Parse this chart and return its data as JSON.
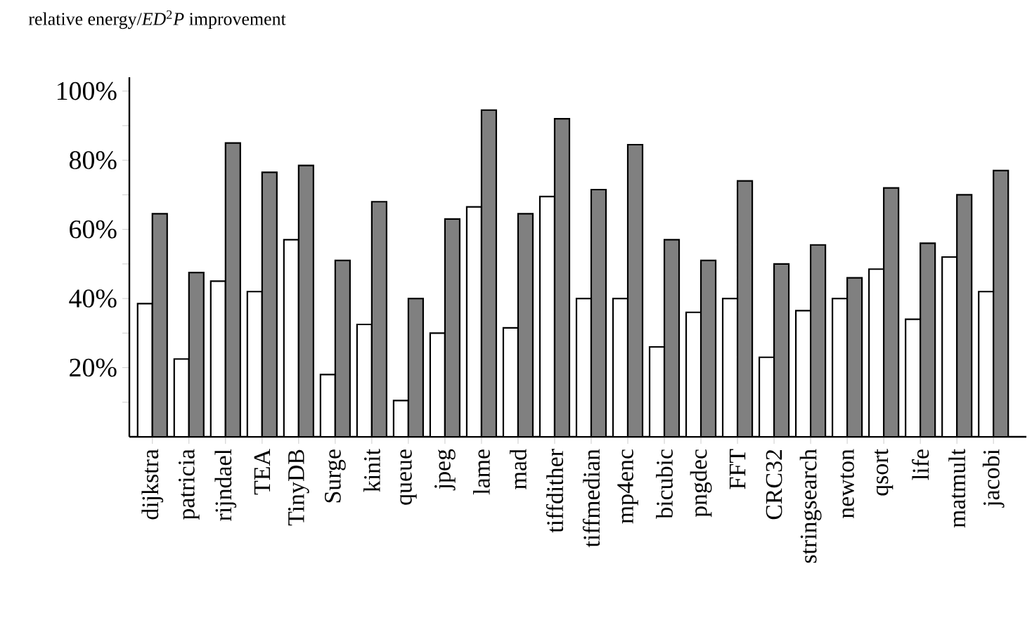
{
  "chart_data": {
    "type": "bar",
    "title": "relative energy/*ED*$^{2}$*P* improvement",
    "categories": [
      "dijkstra",
      "patricia",
      "rijndael",
      "TEA",
      "TinyDB",
      "Surge",
      "kinit",
      "queue",
      "jpeg",
      "lame",
      "mad",
      "tiffdither",
      "tiffmedian",
      "mp4enc",
      "bicubic",
      "pngdec",
      "FFT",
      "CRC32",
      "stringsearch",
      "newton",
      "qsort",
      "life",
      "matmult",
      "jacobi"
    ],
    "series": [
      {
        "color": "#ffffff",
        "values": [
          38.5,
          22.5,
          45,
          42,
          57,
          18,
          32.5,
          10.5,
          30,
          66.5,
          31.5,
          69.5,
          40,
          40,
          26,
          36,
          40,
          23,
          36.5,
          40,
          48.5,
          34,
          52,
          42
        ]
      },
      {
        "color": "#808080",
        "values": [
          64.5,
          47.5,
          85,
          76.5,
          78.5,
          51,
          68,
          40,
          63,
          94.5,
          64.5,
          92,
          71.5,
          84.5,
          57,
          51,
          74,
          50,
          55.5,
          46,
          72,
          56,
          70,
          77
        ]
      }
    ],
    "ylim": [
      0,
      104
    ],
    "yticks": [
      {
        "value": 10,
        "label": null
      },
      {
        "value": 20,
        "label": "20%"
      },
      {
        "value": 30,
        "label": null
      },
      {
        "value": 40,
        "label": "40%"
      },
      {
        "value": 50,
        "label": null
      },
      {
        "value": 60,
        "label": "60%"
      },
      {
        "value": 70,
        "label": null
      },
      {
        "value": 80,
        "label": "80%"
      },
      {
        "value": 90,
        "label": null
      },
      {
        "value": 100,
        "label": "100%"
      }
    ],
    "grid": false
  }
}
